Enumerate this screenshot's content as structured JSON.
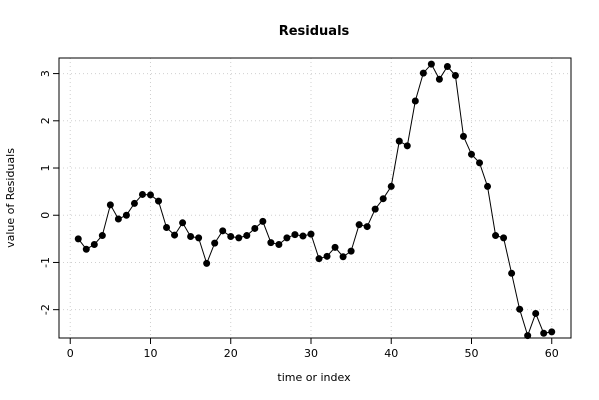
{
  "chart_data": {
    "type": "line",
    "title": "Residuals",
    "xlabel": "time or index",
    "ylabel": "value of Residuals",
    "xlim": [
      -1.4,
      62.4
    ],
    "ylim": [
      -2.6,
      3.33
    ],
    "xticks": [
      0,
      10,
      20,
      30,
      40,
      50,
      60
    ],
    "yticks": [
      -2,
      -1,
      0,
      1,
      2,
      3
    ],
    "grid": true,
    "markers": "filled-circle",
    "x": [
      1,
      2,
      3,
      4,
      5,
      6,
      7,
      8,
      9,
      10,
      11,
      12,
      13,
      14,
      15,
      16,
      17,
      18,
      19,
      20,
      21,
      22,
      23,
      24,
      25,
      26,
      27,
      28,
      29,
      30,
      31,
      32,
      33,
      34,
      35,
      36,
      37,
      38,
      39,
      40,
      41,
      42,
      43,
      44,
      45,
      46,
      47,
      48,
      49,
      50,
      51,
      52,
      53,
      54,
      55,
      56,
      57,
      58,
      59,
      60
    ],
    "values": [
      -0.5,
      -0.72,
      -0.62,
      -0.43,
      0.22,
      -0.08,
      0.0,
      0.25,
      0.44,
      0.43,
      0.3,
      -0.26,
      -0.42,
      -0.16,
      -0.45,
      -0.48,
      -1.02,
      -0.59,
      -0.33,
      -0.45,
      -0.48,
      -0.43,
      -0.28,
      -0.13,
      -0.58,
      -0.62,
      -0.48,
      -0.41,
      -0.44,
      -0.4,
      -0.92,
      -0.87,
      -0.68,
      -0.88,
      -0.76,
      -0.2,
      -0.24,
      0.13,
      0.35,
      0.61,
      1.57,
      1.47,
      2.42,
      3.01,
      3.2,
      2.88,
      3.15,
      2.96,
      1.67,
      1.29,
      1.11,
      0.61,
      -0.43,
      -0.48,
      -1.23,
      -1.99,
      -2.55,
      -2.08,
      -2.5,
      -2.47
    ]
  }
}
